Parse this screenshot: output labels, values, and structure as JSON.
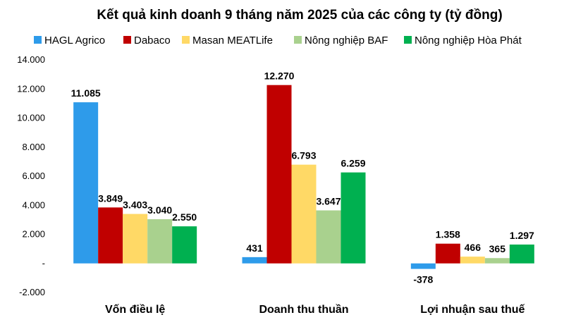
{
  "chart_data": {
    "type": "bar",
    "title": "Kết quả kinh doanh 9 tháng năm 2025 của các công ty (tỷ đồng)",
    "categories": [
      "Vốn điều lệ",
      "Doanh thu thuần",
      "Lợi nhuận sau thuế"
    ],
    "series": [
      {
        "name": "HAGL Agrico",
        "color": "#2E9BEA",
        "values": [
          11085,
          431,
          -378
        ],
        "labels": [
          "11.085",
          "431",
          "-378"
        ]
      },
      {
        "name": "Dabaco",
        "color": "#C00000",
        "values": [
          3849,
          12270,
          1358
        ],
        "labels": [
          "3.849",
          "12.270",
          "1.358"
        ]
      },
      {
        "name": "Masan MEATLife",
        "color": "#FFD966",
        "values": [
          3403,
          6793,
          466
        ],
        "labels": [
          "3.403",
          "6.793",
          "466"
        ]
      },
      {
        "name": "Nông nghiệp BAF",
        "color": "#A9D18E",
        "values": [
          3040,
          3647,
          365
        ],
        "labels": [
          "3.040",
          "3.647",
          "365"
        ]
      },
      {
        "name": "Nông nghiệp Hòa Phát",
        "color": "#00B050",
        "values": [
          2550,
          6259,
          1297
        ],
        "labels": [
          "2.550",
          "6.259",
          "1.297"
        ]
      }
    ],
    "ylim": [
      -2000,
      14000
    ],
    "yticks": [
      -2000,
      0,
      2000,
      4000,
      6000,
      8000,
      10000,
      12000,
      14000
    ],
    "ytick_labels": [
      "-2.000",
      "-",
      "2.000",
      "4.000",
      "6.000",
      "8.000",
      "10.000",
      "12.000",
      "14.000"
    ],
    "grid": false,
    "legend": "top"
  }
}
